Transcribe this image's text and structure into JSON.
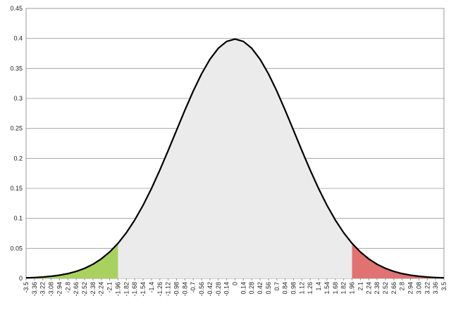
{
  "chart_data": {
    "type": "area",
    "x": [
      -3.5,
      -3.36,
      -3.22,
      -3.08,
      -2.94,
      -2.8,
      -2.66,
      -2.52,
      -2.38,
      -2.24,
      -2.1,
      -1.96,
      -1.82,
      -1.68,
      -1.54,
      -1.4,
      -1.26,
      -1.12,
      -0.98,
      -0.84,
      -0.7,
      -0.56,
      -0.42,
      -0.28,
      -0.14,
      0,
      0.14,
      0.28,
      0.42,
      0.56,
      0.7,
      0.84,
      0.98,
      1.12,
      1.26,
      1.4,
      1.54,
      1.68,
      1.82,
      1.96,
      2.1,
      2.24,
      2.38,
      2.52,
      2.66,
      2.8,
      2.94,
      3.08,
      3.22,
      3.36,
      3.5
    ],
    "values": [
      0.0009,
      0.0014,
      0.0022,
      0.0035,
      0.0053,
      0.0079,
      0.0116,
      0.0167,
      0.0235,
      0.0325,
      0.044,
      0.0584,
      0.0761,
      0.0973,
      0.1219,
      0.1497,
      0.1804,
      0.2131,
      0.2468,
      0.2803,
      0.3123,
      0.341,
      0.3653,
      0.3836,
      0.395,
      0.3989,
      0.395,
      0.3836,
      0.3653,
      0.341,
      0.3123,
      0.2803,
      0.2468,
      0.2131,
      0.1804,
      0.1497,
      0.1219,
      0.0973,
      0.0761,
      0.0584,
      0.044,
      0.0325,
      0.0235,
      0.0167,
      0.0116,
      0.0079,
      0.0053,
      0.0035,
      0.0022,
      0.0014,
      0.0009
    ],
    "color": "#000000",
    "bands": [
      {
        "xlim": [
          -3.5,
          -1.96
        ],
        "color": "#a9d160"
      },
      {
        "xlim": [
          -1.96,
          1.96
        ],
        "color": "#ebebeb"
      },
      {
        "xlim": [
          1.96,
          3.5
        ],
        "color": "#e07272"
      }
    ],
    "xlim": [
      -3.5,
      3.5
    ],
    "ylim": [
      0,
      0.45
    ],
    "yticks": [
      0,
      0.05,
      0.1,
      0.15,
      0.2,
      0.25,
      0.3,
      0.35,
      0.4,
      0.45
    ],
    "grid": true
  }
}
